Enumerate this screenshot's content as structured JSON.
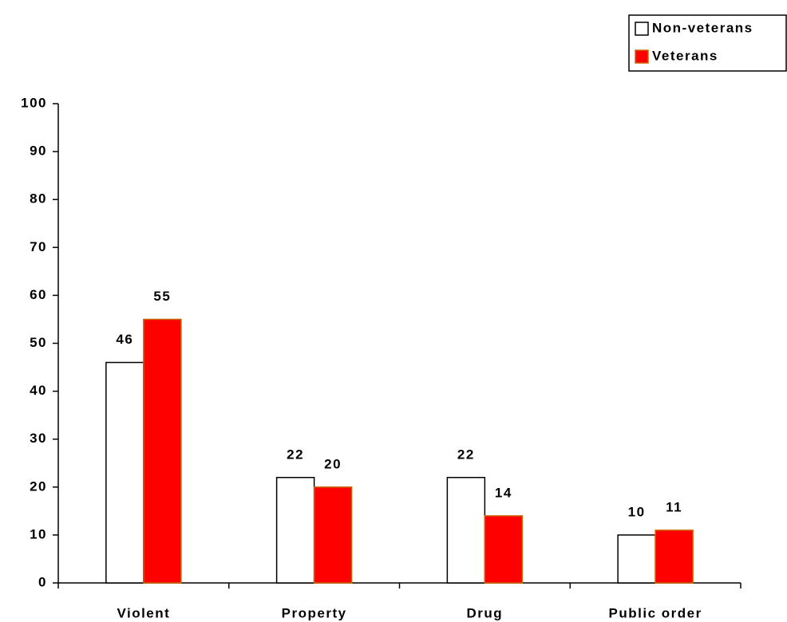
{
  "chart_data": {
    "type": "bar",
    "categories": [
      "Violent",
      "Property",
      "Drug",
      "Public order"
    ],
    "series": [
      {
        "name": "Non-veterans",
        "color": "#ffffff",
        "values": [
          46,
          22,
          22,
          10
        ]
      },
      {
        "name": "Veterans",
        "color": "#ff0000",
        "values": [
          55,
          20,
          14,
          11
        ]
      }
    ],
    "ylim": [
      0,
      100
    ],
    "yticks": [
      0,
      10,
      20,
      30,
      40,
      50,
      60,
      70,
      80,
      90,
      100
    ],
    "legend": "top-right"
  }
}
